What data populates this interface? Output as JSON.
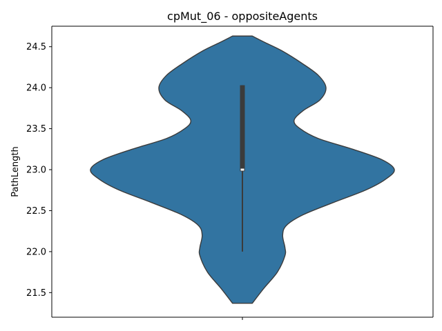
{
  "chart_data": {
    "type": "violin",
    "title": "cpMut_06 - oppositeAgents",
    "xlabel": "",
    "ylabel": "PathLength",
    "ylim": [
      21.2,
      24.75
    ],
    "yticks": [
      21.5,
      22.0,
      22.5,
      23.0,
      23.5,
      24.0,
      24.5
    ],
    "ytick_labels": [
      "21.5",
      "22.0",
      "22.5",
      "23.0",
      "23.5",
      "24.0",
      "24.5"
    ],
    "categories": [
      ""
    ],
    "grid": false,
    "violin": {
      "color": "#3274a1",
      "edge_color": "#3b3b3b",
      "range": [
        21.37,
        24.63
      ],
      "density": [
        {
          "y": 21.37,
          "w": 0.13
        },
        {
          "y": 21.55,
          "w": 0.28
        },
        {
          "y": 21.75,
          "w": 0.46
        },
        {
          "y": 21.95,
          "w": 0.56
        },
        {
          "y": 22.05,
          "w": 0.56
        },
        {
          "y": 22.2,
          "w": 0.53
        },
        {
          "y": 22.32,
          "w": 0.58
        },
        {
          "y": 22.45,
          "w": 0.8
        },
        {
          "y": 22.6,
          "w": 1.2
        },
        {
          "y": 22.75,
          "w": 1.62
        },
        {
          "y": 22.88,
          "w": 1.88
        },
        {
          "y": 23.0,
          "w": 2.0
        },
        {
          "y": 23.12,
          "w": 1.84
        },
        {
          "y": 23.25,
          "w": 1.45
        },
        {
          "y": 23.38,
          "w": 1.0
        },
        {
          "y": 23.5,
          "w": 0.76
        },
        {
          "y": 23.6,
          "w": 0.68
        },
        {
          "y": 23.72,
          "w": 0.8
        },
        {
          "y": 23.85,
          "w": 1.02
        },
        {
          "y": 24.0,
          "w": 1.1
        },
        {
          "y": 24.15,
          "w": 1.0
        },
        {
          "y": 24.3,
          "w": 0.78
        },
        {
          "y": 24.45,
          "w": 0.52
        },
        {
          "y": 24.55,
          "w": 0.3
        },
        {
          "y": 24.63,
          "w": 0.13
        }
      ]
    },
    "box": {
      "q1": 22.98,
      "median": 23.0,
      "q3": 24.03,
      "whisker_low": 22.0,
      "whisker_high": 24.03
    }
  }
}
